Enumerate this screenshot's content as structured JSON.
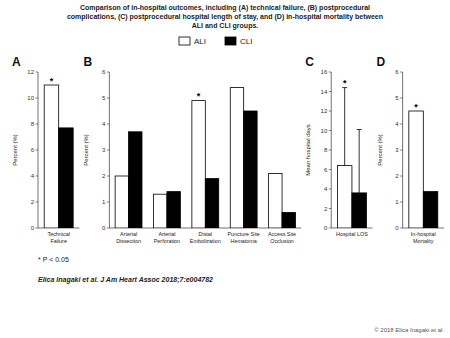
{
  "title": "Comparison of in-hospital outcomes, including (A) technical failure, (B) postprocedural\ncomplications, (C) postprocedural hospital length of stay, and (D) in-hospital mortality between\nALI and CLI groups.",
  "annotations": [
    "* P < 0.05",
    "Elica Inagaki et al. J Am Heart Assoc 2018;7:e004782",
    "© 2018 Elica Inagaki et al."
  ],
  "chart_data": [
    {
      "type": "bar",
      "title": "A",
      "legend": "top",
      "grid": false,
      "categories": [
        "Technical\nFailure"
      ],
      "series": [
        {
          "name": "ALI",
          "color": "white",
          "values": [
            11.0
          ]
        },
        {
          "name": "CLI",
          "color": "black",
          "values": [
            7.7
          ]
        }
      ],
      "ylabel": "Percent (%)",
      "ylim": [
        0,
        12
      ],
      "yticks": [
        0,
        2,
        4,
        6,
        8,
        10,
        12
      ],
      "annotations": [
        {
          "text": "*",
          "series": 0,
          "index": 0
        }
      ]
    },
    {
      "type": "bar",
      "title": "B",
      "grid": false,
      "categories": [
        "Arterial\nDissection",
        "Arterial\nPerforation",
        "Distal\nEmbolization",
        "Puncture Site\nHematoma",
        "Access Site\nOcclusion"
      ],
      "series": [
        {
          "name": "ALI",
          "color": "white",
          "values": [
            2.0,
            1.3,
            4.9,
            5.4,
            2.1
          ]
        },
        {
          "name": "CLI",
          "color": "black",
          "values": [
            3.7,
            1.4,
            1.9,
            4.5,
            0.6
          ]
        }
      ],
      "ylabel": "Percent (%)",
      "ylim": [
        0,
        6
      ],
      "yticks": [
        0,
        1,
        2,
        3,
        4,
        5,
        6
      ],
      "annotations": [
        {
          "text": "*",
          "series": 0,
          "index": 2
        }
      ]
    },
    {
      "type": "bar",
      "title": "C",
      "grid": false,
      "categories": [
        "Hospital LOS"
      ],
      "series": [
        {
          "name": "ALI",
          "color": "white",
          "values": [
            6.4
          ],
          "errors_upper": [
            8.0
          ]
        },
        {
          "name": "CLI",
          "color": "black",
          "values": [
            3.6
          ],
          "errors_upper": [
            6.5
          ]
        }
      ],
      "ylabel": "Mean hospital days",
      "ylim": [
        0,
        16
      ],
      "yticks": [
        0,
        2,
        4,
        6,
        8,
        10,
        12,
        14,
        16
      ],
      "annotations": [
        {
          "text": "*",
          "series": 0,
          "index": 0
        }
      ]
    },
    {
      "type": "bar",
      "title": "D",
      "grid": false,
      "categories": [
        "In-hospital\nMortality"
      ],
      "series": [
        {
          "name": "ALI",
          "color": "white",
          "values": [
            4.5
          ]
        },
        {
          "name": "CLI",
          "color": "black",
          "values": [
            1.4
          ]
        }
      ],
      "ylabel": "Percent (%)",
      "ylim": [
        0,
        6
      ],
      "yticks": [
        0,
        1,
        2,
        3,
        4,
        5,
        6
      ],
      "annotations": [
        {
          "text": "*",
          "series": 0,
          "index": 0
        }
      ]
    }
  ]
}
